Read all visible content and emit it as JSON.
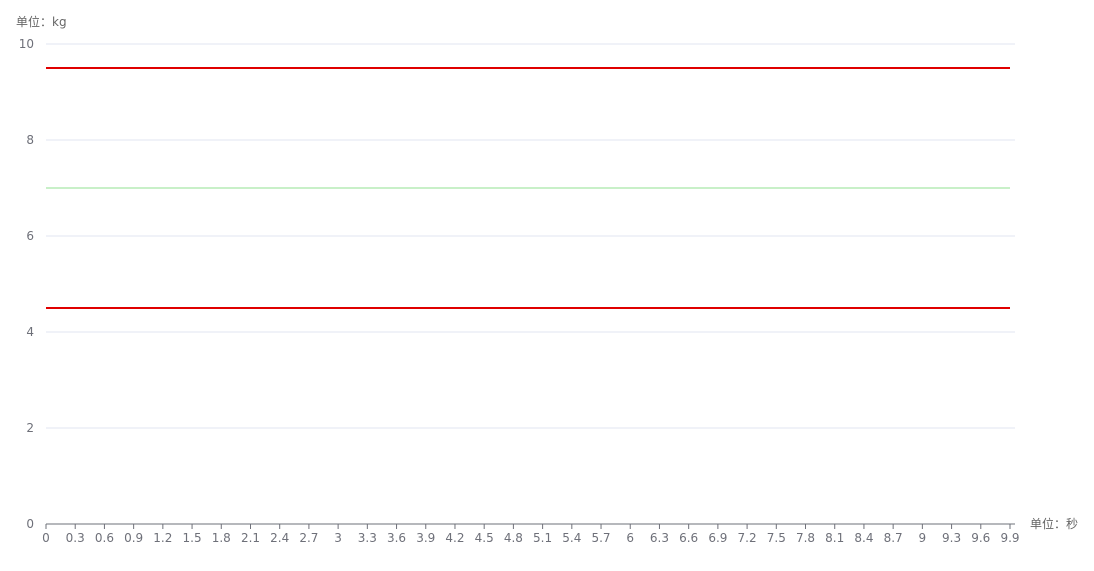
{
  "chart_data": {
    "type": "line",
    "y_unit_label": "单位：kg",
    "x_unit_label": "单位：秒",
    "ylim": [
      0,
      10
    ],
    "y_ticks": [
      0,
      2,
      4,
      6,
      8,
      10
    ],
    "x": [
      "0",
      "0.3",
      "0.6",
      "0.9",
      "1.2",
      "1.5",
      "1.8",
      "2.1",
      "2.4",
      "2.7",
      "3",
      "3.3",
      "3.6",
      "3.9",
      "4.2",
      "4.5",
      "4.8",
      "5.1",
      "5.4",
      "5.7",
      "6",
      "6.3",
      "6.6",
      "6.9",
      "7.2",
      "7.5",
      "7.8",
      "8.1",
      "8.4",
      "8.7",
      "9",
      "9.3",
      "9.6",
      "9.9"
    ],
    "series": [
      {
        "values": [
          9.5,
          9.5,
          9.5,
          9.5,
          9.5,
          9.5,
          9.5,
          9.5,
          9.5,
          9.5,
          9.5,
          9.5,
          9.5,
          9.5,
          9.5,
          9.5,
          9.5,
          9.5,
          9.5,
          9.5,
          9.5,
          9.5,
          9.5,
          9.5,
          9.5,
          9.5,
          9.5,
          9.5,
          9.5,
          9.5,
          9.5,
          9.5,
          9.5,
          9.5
        ],
        "color": "#e00000"
      },
      {
        "values": [
          7,
          7,
          7,
          7,
          7,
          7,
          7,
          7,
          7,
          7,
          7,
          7,
          7,
          7,
          7,
          7,
          7,
          7,
          7,
          7,
          7,
          7,
          7,
          7,
          7,
          7,
          7,
          7,
          7,
          7,
          7,
          7,
          7,
          7
        ],
        "color": "#c8f0c8"
      },
      {
        "values": [
          4.5,
          4.5,
          4.5,
          4.5,
          4.5,
          4.5,
          4.5,
          4.5,
          4.5,
          4.5,
          4.5,
          4.5,
          4.5,
          4.5,
          4.5,
          4.5,
          4.5,
          4.5,
          4.5,
          4.5,
          4.5,
          4.5,
          4.5,
          4.5,
          4.5,
          4.5,
          4.5,
          4.5,
          4.5,
          4.5,
          4.5,
          4.5,
          4.5,
          4.5
        ],
        "color": "#e00000"
      }
    ],
    "grid": true
  }
}
